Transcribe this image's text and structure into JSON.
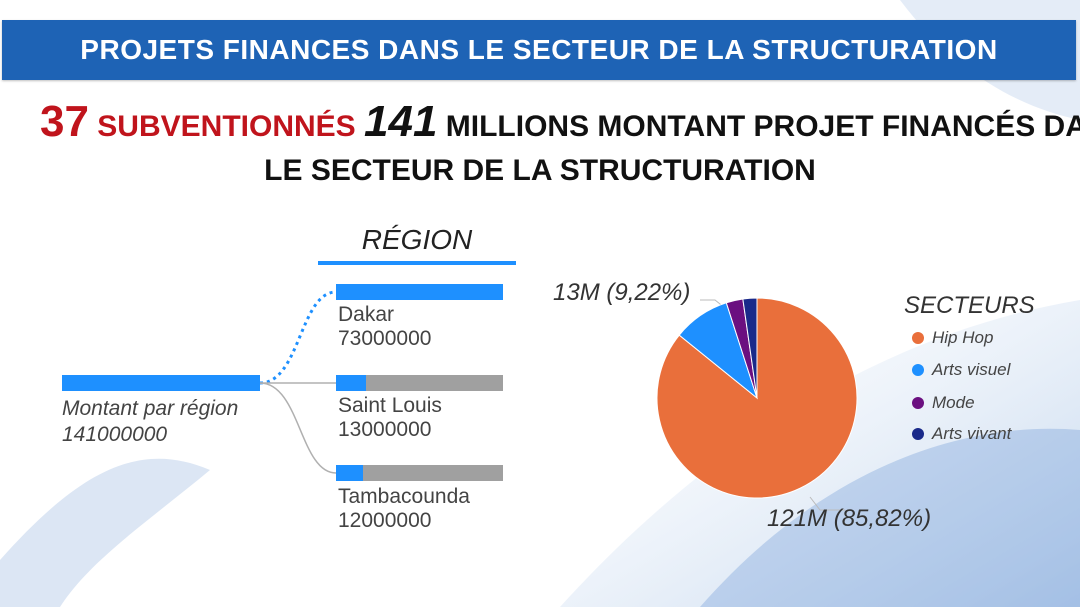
{
  "header": {
    "title": "PROJETS FINANCES DANS LE SECTEUR DE LA STRUCTURATION"
  },
  "headline": {
    "count": "37",
    "count_label": "SUBVENTIONNÉS",
    "amount": "141",
    "amount_label": "MILLIONS MONTANT PROJET FINANCÉS DANS",
    "line2": "LE SECTEUR DE LA STRUCTURATION"
  },
  "colors": {
    "header": "#1e63b5",
    "accent_red": "#c0141c",
    "bar_blue": "#1e90ff",
    "bar_gray": "#a0a0a0"
  },
  "chart_data": [
    {
      "type": "bar",
      "title": "RÉGION",
      "root": {
        "label": "Montant par région",
        "value_label": "141000000",
        "value": 141000000
      },
      "categories": [
        "Dakar",
        "Saint Louis",
        "Tambacounda"
      ],
      "value_labels": [
        "73000000",
        "13000000",
        "12000000"
      ],
      "values": [
        73000000,
        13000000,
        12000000
      ],
      "max": 73000000
    },
    {
      "type": "pie",
      "legend_title": "SECTEURS",
      "legend_placement": "right",
      "slices": [
        {
          "name": "Hip Hop",
          "value": 85.82,
          "color": "#e96f3b"
        },
        {
          "name": "Arts visuel",
          "value": 9.22,
          "color": "#1e90ff"
        },
        {
          "name": "Mode",
          "value": 2.7,
          "color": "#6b0f80"
        },
        {
          "name": "Arts vivant",
          "value": 2.26,
          "color": "#1a2a8a"
        }
      ],
      "callouts": [
        "121M (85,82%)",
        "13M (9,22%)"
      ]
    }
  ]
}
